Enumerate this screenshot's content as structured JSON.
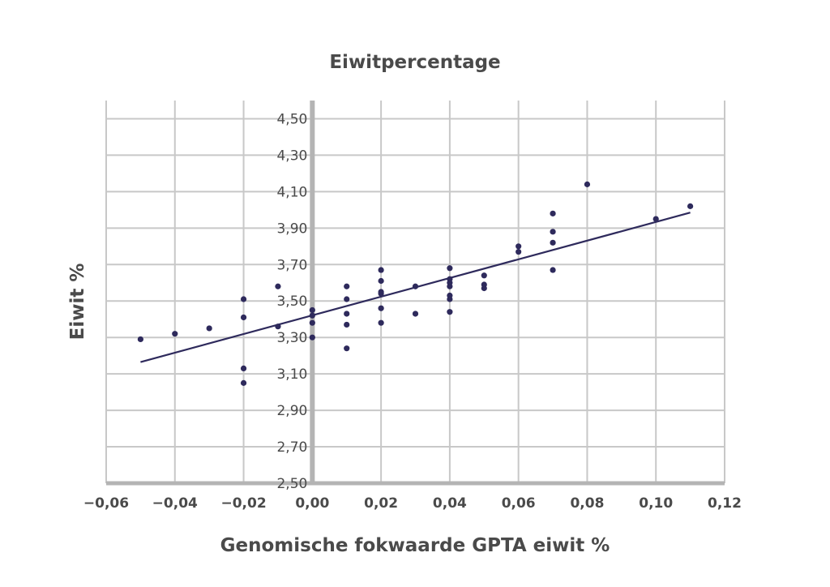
{
  "chart_data": {
    "type": "scatter",
    "title": "Eiwitpercentage",
    "xlabel": "Genomische fokwaarde GPTA eiwit %",
    "ylabel": "Eiwit %",
    "xlim": [
      -0.06,
      0.12
    ],
    "ylim": [
      2.5,
      4.6
    ],
    "x_ticks": [
      -0.06,
      -0.04,
      -0.02,
      0.0,
      0.02,
      0.04,
      0.06,
      0.08,
      0.1,
      0.12
    ],
    "x_tick_labels": [
      "−0,06",
      "−0,04",
      "−0,02",
      "0,00",
      "0,02",
      "0,04",
      "0,06",
      "0,08",
      "0,10",
      "0,12"
    ],
    "y_ticks": [
      2.5,
      2.7,
      2.9,
      3.1,
      3.3,
      3.5,
      3.7,
      3.9,
      4.1,
      4.3,
      4.5
    ],
    "y_tick_labels": [
      "2,50",
      "2,70",
      "2,90",
      "3,10",
      "3,30",
      "3,50",
      "3,70",
      "3,90",
      "4,10",
      "4,30",
      "4,50"
    ],
    "grid": true,
    "colors": {
      "points": "#2e2a5c",
      "trendline": "#2e2a5c",
      "grid": "#c8c8c8",
      "zero_axis": "#b4b4b4",
      "text": "#4a4a4a"
    },
    "points": [
      {
        "x": -0.05,
        "y": 3.29
      },
      {
        "x": -0.04,
        "y": 3.32
      },
      {
        "x": -0.03,
        "y": 3.35
      },
      {
        "x": -0.02,
        "y": 3.51
      },
      {
        "x": -0.02,
        "y": 3.41
      },
      {
        "x": -0.02,
        "y": 3.13
      },
      {
        "x": -0.02,
        "y": 3.05
      },
      {
        "x": -0.01,
        "y": 3.58
      },
      {
        "x": -0.01,
        "y": 3.36
      },
      {
        "x": 0.0,
        "y": 3.45
      },
      {
        "x": 0.0,
        "y": 3.42
      },
      {
        "x": 0.0,
        "y": 3.38
      },
      {
        "x": 0.0,
        "y": 3.3
      },
      {
        "x": 0.01,
        "y": 3.58
      },
      {
        "x": 0.01,
        "y": 3.51
      },
      {
        "x": 0.01,
        "y": 3.43
      },
      {
        "x": 0.01,
        "y": 3.37
      },
      {
        "x": 0.01,
        "y": 3.24
      },
      {
        "x": 0.02,
        "y": 3.67
      },
      {
        "x": 0.02,
        "y": 3.61
      },
      {
        "x": 0.02,
        "y": 3.55
      },
      {
        "x": 0.02,
        "y": 3.54
      },
      {
        "x": 0.02,
        "y": 3.46
      },
      {
        "x": 0.02,
        "y": 3.38
      },
      {
        "x": 0.03,
        "y": 3.58
      },
      {
        "x": 0.03,
        "y": 3.43
      },
      {
        "x": 0.04,
        "y": 3.68
      },
      {
        "x": 0.04,
        "y": 3.62
      },
      {
        "x": 0.04,
        "y": 3.6
      },
      {
        "x": 0.04,
        "y": 3.58
      },
      {
        "x": 0.04,
        "y": 3.53
      },
      {
        "x": 0.04,
        "y": 3.51
      },
      {
        "x": 0.04,
        "y": 3.44
      },
      {
        "x": 0.05,
        "y": 3.64
      },
      {
        "x": 0.05,
        "y": 3.59
      },
      {
        "x": 0.05,
        "y": 3.57
      },
      {
        "x": 0.06,
        "y": 3.8
      },
      {
        "x": 0.06,
        "y": 3.77
      },
      {
        "x": 0.07,
        "y": 3.98
      },
      {
        "x": 0.07,
        "y": 3.88
      },
      {
        "x": 0.07,
        "y": 3.82
      },
      {
        "x": 0.07,
        "y": 3.67
      },
      {
        "x": 0.08,
        "y": 4.14
      },
      {
        "x": 0.1,
        "y": 3.95
      },
      {
        "x": 0.11,
        "y": 4.02
      }
    ],
    "trendline": {
      "x": [
        -0.05,
        0.11
      ],
      "y": [
        3.165,
        3.985
      ]
    }
  }
}
